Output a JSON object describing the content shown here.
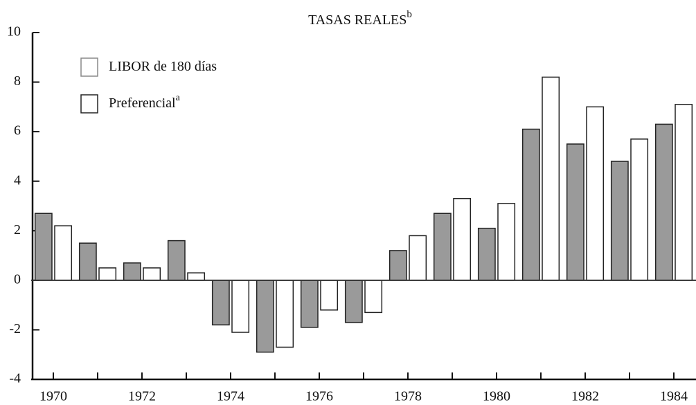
{
  "chart_data": {
    "type": "bar",
    "title": "TASAS REALES",
    "title_superscript": "b",
    "categories": [
      "1970",
      null,
      "1972",
      null,
      "1974",
      null,
      "1976",
      null,
      "1978",
      null,
      "1980",
      null,
      "1982",
      null,
      "1984"
    ],
    "series": [
      {
        "name": "LIBOR de 180 días",
        "color": "#9a9a9a",
        "values": [
          2.7,
          1.5,
          0.7,
          1.6,
          -1.8,
          -2.9,
          -1.9,
          -1.7,
          1.2,
          2.7,
          2.1,
          6.1,
          5.5,
          4.8,
          6.3
        ]
      },
      {
        "name": "Preferencial",
        "superscript": "a",
        "color": "#ffffff",
        "values": [
          2.2,
          0.5,
          0.5,
          0.3,
          -2.1,
          -2.7,
          -1.2,
          -1.3,
          1.8,
          3.3,
          3.1,
          8.2,
          7.0,
          5.7,
          7.1
        ]
      }
    ],
    "ylim": [
      -4,
      10
    ],
    "yticks": [
      -4,
      -2,
      0,
      2,
      4,
      6,
      8,
      10
    ],
    "grid": false,
    "legend": "upper left"
  }
}
